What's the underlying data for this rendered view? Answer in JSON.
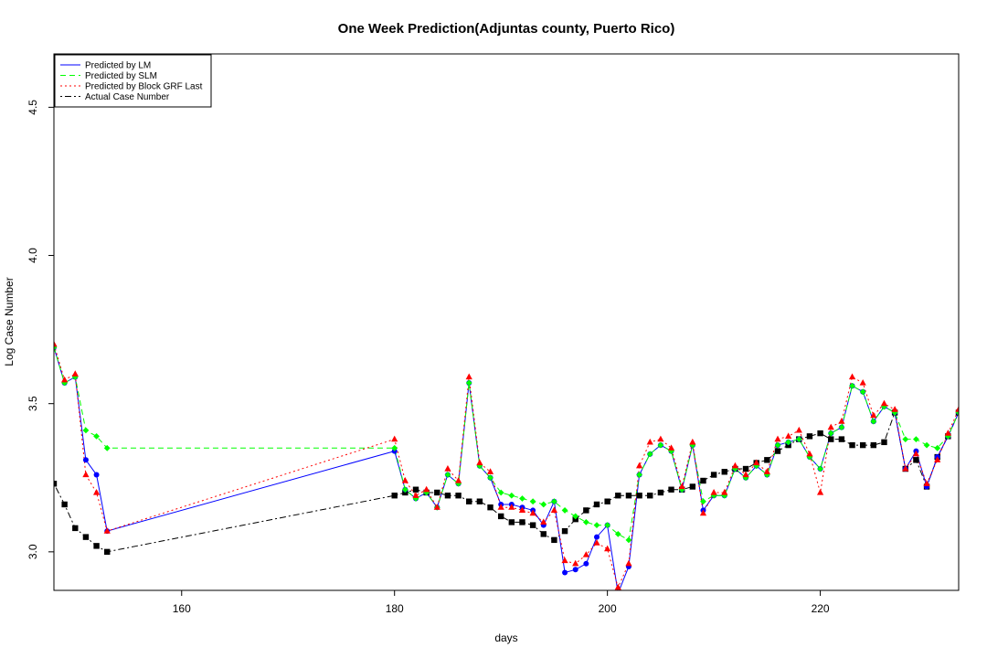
{
  "chart_data": {
    "type": "line",
    "title": "One Week Prediction(Adjuntas county, Puerto Rico)",
    "xlabel": "days",
    "ylabel": "Log Case Number",
    "xlim": [
      148,
      233
    ],
    "ylim": [
      2.87,
      4.68
    ],
    "x_ticks": [
      160,
      180,
      200,
      220
    ],
    "y_ticks": [
      3.0,
      3.5,
      4.0,
      4.5
    ],
    "x_tick_labels": [
      "160",
      "180",
      "200",
      "220"
    ],
    "y_tick_labels": [
      "3.0",
      "3.5",
      "4.0",
      "4.5"
    ],
    "grid": false,
    "legend_position": "top-left",
    "x": [
      148,
      149,
      150,
      151,
      152,
      153,
      180,
      181,
      182,
      183,
      184,
      185,
      186,
      187,
      188,
      189,
      190,
      191,
      192,
      193,
      194,
      195,
      196,
      197,
      198,
      199,
      200,
      201,
      202,
      203,
      204,
      205,
      206,
      207,
      208,
      209,
      210,
      211,
      212,
      213,
      214,
      215,
      216,
      217,
      218,
      219,
      220,
      221,
      222,
      223,
      224,
      225,
      226,
      227,
      228,
      229,
      230,
      231,
      232,
      233
    ],
    "series": [
      {
        "name": "Predicted by LM",
        "color": "#0000ff",
        "line": "solid",
        "marker": "circle",
        "values": [
          3.69,
          3.57,
          3.59,
          3.31,
          3.26,
          3.07,
          3.34,
          3.21,
          3.18,
          3.2,
          3.15,
          3.26,
          3.23,
          3.57,
          3.29,
          3.25,
          3.16,
          3.16,
          3.15,
          3.14,
          3.09,
          3.17,
          2.93,
          2.94,
          2.96,
          3.05,
          3.09,
          2.86,
          2.95,
          3.26,
          3.33,
          3.36,
          3.34,
          3.21,
          3.36,
          3.14,
          3.19,
          3.19,
          3.28,
          3.25,
          3.29,
          3.26,
          3.36,
          3.37,
          3.38,
          3.32,
          3.28,
          3.4,
          3.42,
          3.56,
          3.54,
          3.44,
          3.49,
          3.47,
          3.28,
          3.34,
          3.22,
          3.32,
          3.39,
          3.47
        ]
      },
      {
        "name": "Predicted by SLM",
        "color": "#00ff00",
        "line": "dashed",
        "marker": "diamond",
        "values": [
          3.69,
          3.57,
          3.59,
          3.41,
          3.39,
          3.35,
          3.35,
          3.21,
          3.18,
          3.2,
          3.15,
          3.26,
          3.23,
          3.57,
          3.29,
          3.25,
          3.2,
          3.19,
          3.18,
          3.17,
          3.16,
          3.17,
          3.14,
          3.12,
          3.1,
          3.09,
          3.09,
          3.06,
          3.04,
          3.26,
          3.33,
          3.36,
          3.34,
          3.21,
          3.36,
          3.17,
          3.19,
          3.19,
          3.28,
          3.25,
          3.29,
          3.26,
          3.36,
          3.37,
          3.38,
          3.32,
          3.28,
          3.4,
          3.42,
          3.56,
          3.54,
          3.44,
          3.49,
          3.47,
          3.38,
          3.38,
          3.36,
          3.35,
          3.39,
          3.47
        ]
      },
      {
        "name": "Predicted by Block GRF Last",
        "color": "#ff0000",
        "line": "dotted",
        "marker": "triangle",
        "values": [
          3.7,
          3.58,
          3.6,
          3.26,
          3.2,
          3.07,
          3.38,
          3.24,
          3.19,
          3.21,
          3.15,
          3.28,
          3.24,
          3.59,
          3.3,
          3.27,
          3.15,
          3.15,
          3.14,
          3.13,
          3.1,
          3.14,
          2.97,
          2.96,
          2.99,
          3.03,
          3.01,
          2.88,
          2.96,
          3.29,
          3.37,
          3.38,
          3.35,
          3.22,
          3.37,
          3.13,
          3.2,
          3.2,
          3.29,
          3.26,
          3.3,
          3.27,
          3.38,
          3.39,
          3.41,
          3.33,
          3.2,
          3.42,
          3.44,
          3.59,
          3.57,
          3.46,
          3.5,
          3.48,
          3.28,
          3.33,
          3.23,
          3.31,
          3.4,
          3.48
        ]
      },
      {
        "name": "Actual Case Number",
        "color": "#000000",
        "line": "dotdash",
        "marker": "square",
        "values": [
          3.23,
          3.16,
          3.08,
          3.05,
          3.02,
          3.0,
          3.19,
          3.2,
          3.21,
          3.2,
          3.2,
          3.19,
          3.19,
          3.17,
          3.17,
          3.15,
          3.12,
          3.1,
          3.1,
          3.09,
          3.06,
          3.04,
          3.07,
          3.11,
          3.14,
          3.16,
          3.17,
          3.19,
          3.19,
          3.19,
          3.19,
          3.2,
          3.21,
          3.21,
          3.22,
          3.24,
          3.26,
          3.27,
          3.28,
          3.28,
          3.3,
          3.31,
          3.34,
          3.36,
          3.38,
          3.39,
          3.4,
          3.38,
          3.38,
          3.36,
          3.36,
          3.36,
          3.37,
          3.47,
          3.28,
          3.31,
          3.22,
          3.32,
          3.39,
          3.47
        ]
      }
    ]
  }
}
